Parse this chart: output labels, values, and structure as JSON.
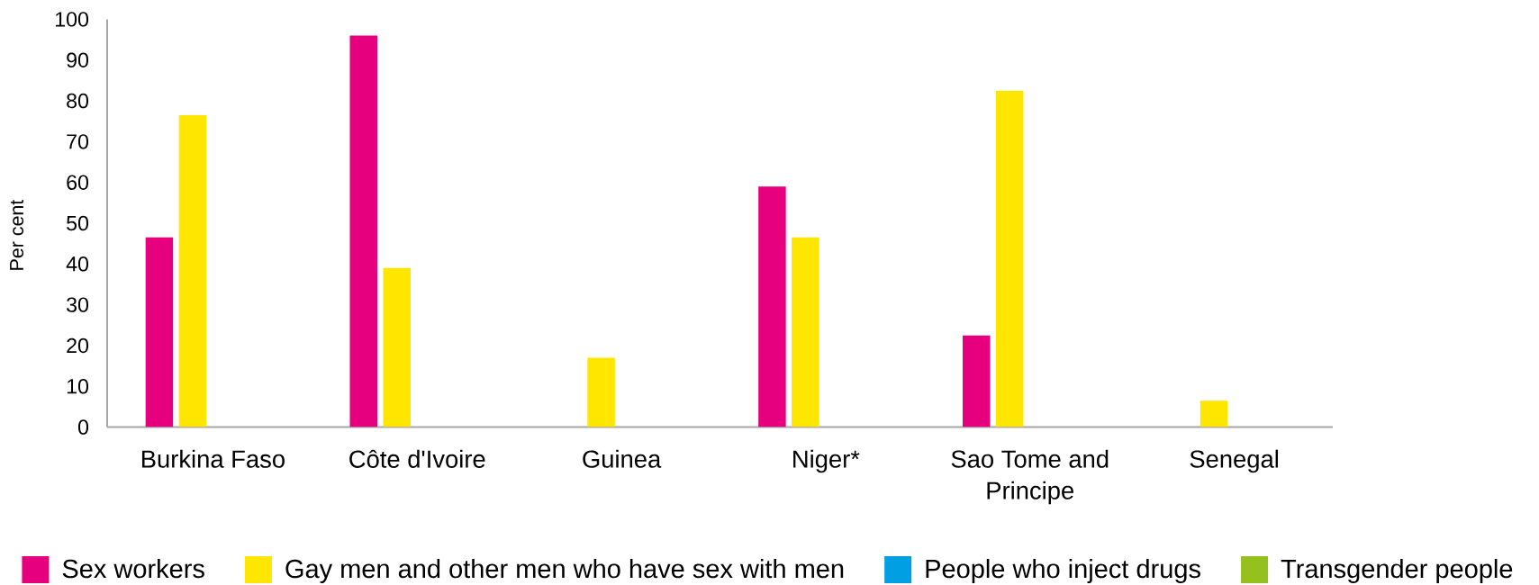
{
  "chart_data": {
    "type": "bar",
    "ylabel": "Per cent",
    "categories": [
      "Burkina Faso",
      "Côte d'Ivoire",
      "Guinea",
      "Niger*",
      "Sao Tome and Principe",
      "Senegal"
    ],
    "series": [
      {
        "name": "Sex workers",
        "color": "#e6007e",
        "values": [
          46.5,
          96,
          null,
          59,
          22.5,
          null
        ]
      },
      {
        "name": "Gay men and other men who have sex with men",
        "color": "#ffe600",
        "values": [
          76.5,
          39,
          17,
          46.5,
          82.5,
          6.5
        ]
      },
      {
        "name": "People who inject drugs",
        "color": "#009fe3",
        "values": [
          null,
          null,
          null,
          null,
          null,
          null
        ]
      },
      {
        "name": "Transgender people",
        "color": "#95c11f",
        "values": [
          null,
          null,
          null,
          null,
          null,
          null
        ]
      }
    ],
    "ylim": [
      0,
      100
    ],
    "yticks": [
      0,
      10,
      20,
      30,
      40,
      50,
      60,
      70,
      80,
      90,
      100
    ],
    "legend": "bottom"
  }
}
